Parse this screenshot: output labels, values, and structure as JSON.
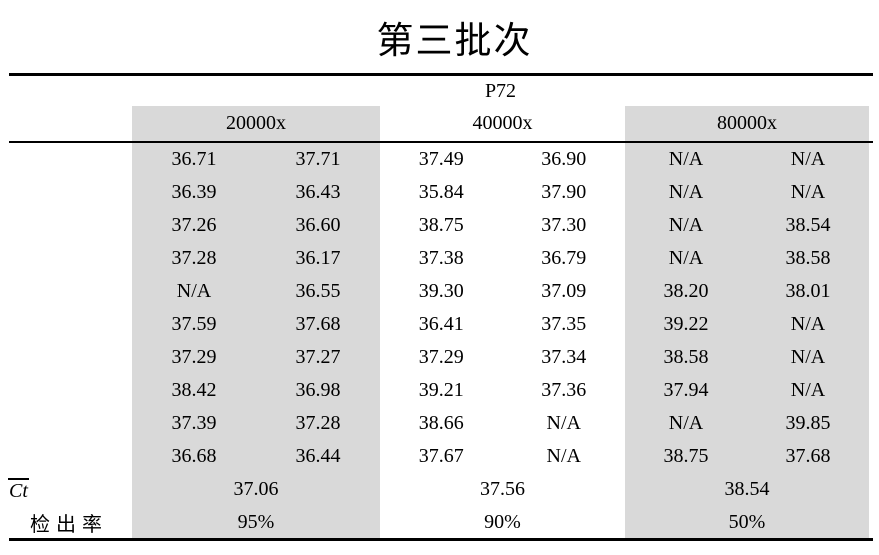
{
  "title": "第三批次",
  "table": {
    "sample_label": "P72",
    "columns": [
      {
        "label": "20000x",
        "shaded": true
      },
      {
        "label": "40000x",
        "shaded": false
      },
      {
        "label": "80000x",
        "shaded": true
      }
    ],
    "rows": [
      [
        [
          "36.71",
          "37.71"
        ],
        [
          "37.49",
          "36.90"
        ],
        [
          "N/A",
          "N/A"
        ]
      ],
      [
        [
          "36.39",
          "36.43"
        ],
        [
          "35.84",
          "37.90"
        ],
        [
          "N/A",
          "N/A"
        ]
      ],
      [
        [
          "37.26",
          "36.60"
        ],
        [
          "38.75",
          "37.30"
        ],
        [
          "N/A",
          "38.54"
        ]
      ],
      [
        [
          "37.28",
          "36.17"
        ],
        [
          "37.38",
          "36.79"
        ],
        [
          "N/A",
          "38.58"
        ]
      ],
      [
        [
          "N/A",
          "36.55"
        ],
        [
          "39.30",
          "37.09"
        ],
        [
          "38.20",
          "38.01"
        ]
      ],
      [
        [
          "37.59",
          "37.68"
        ],
        [
          "36.41",
          "37.35"
        ],
        [
          "39.22",
          "N/A"
        ]
      ],
      [
        [
          "37.29",
          "37.27"
        ],
        [
          "37.29",
          "37.34"
        ],
        [
          "38.58",
          "N/A"
        ]
      ],
      [
        [
          "38.42",
          "36.98"
        ],
        [
          "39.21",
          "37.36"
        ],
        [
          "37.94",
          "N/A"
        ]
      ],
      [
        [
          "37.39",
          "37.28"
        ],
        [
          "38.66",
          "N/A"
        ],
        [
          "N/A",
          "39.85"
        ]
      ],
      [
        [
          "36.68",
          "36.44"
        ],
        [
          "37.67",
          "N/A"
        ],
        [
          "38.75",
          "37.68"
        ]
      ]
    ],
    "summary": {
      "ct_label": "Ct",
      "ct_values": [
        "37.06",
        "37.56",
        "38.54"
      ],
      "rate_label": "检出率",
      "rate_values": [
        "95%",
        "90%",
        "50%"
      ]
    }
  },
  "colors": {
    "shade": "#d9d9d9",
    "text": "#000000",
    "rule": "#000000",
    "page_bg": "#ffffff"
  }
}
